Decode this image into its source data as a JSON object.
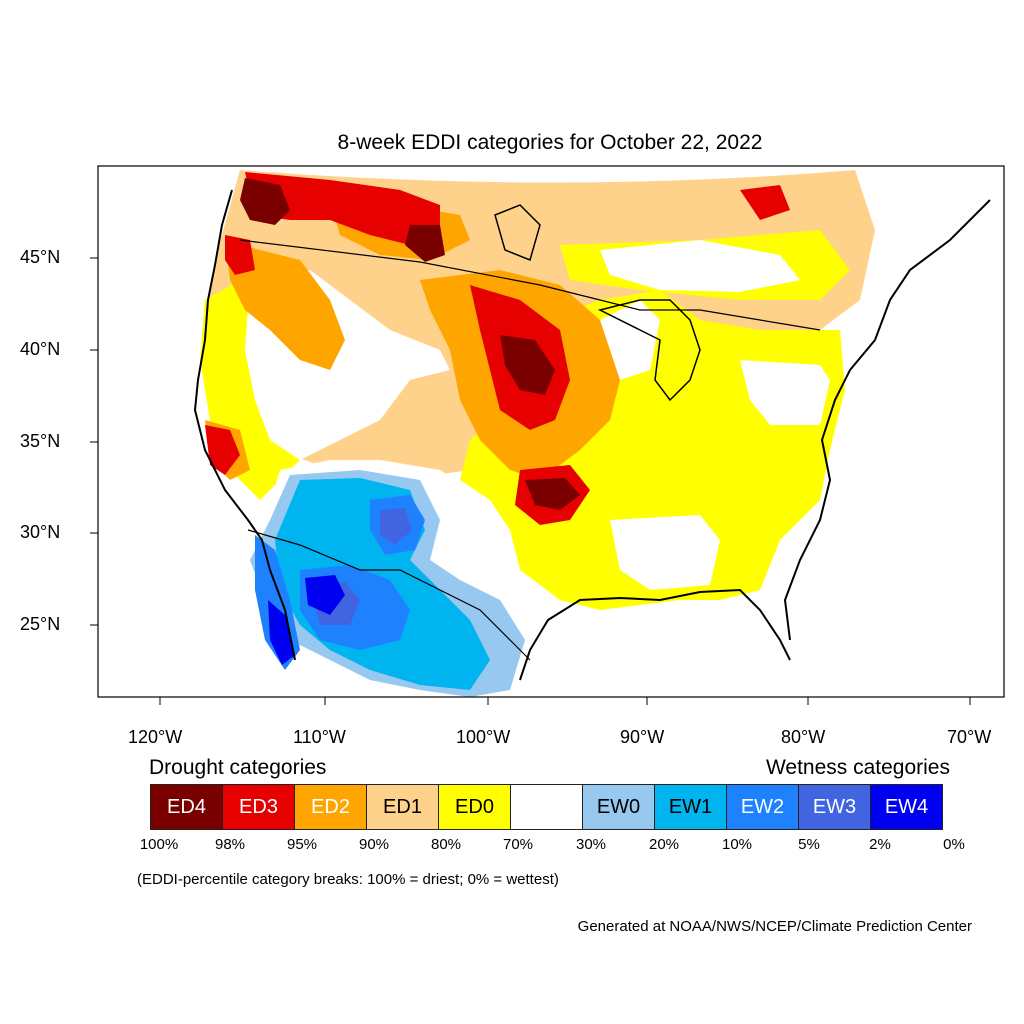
{
  "title": "8-week EDDI categories for October 22, 2022",
  "lat_labels": [
    "45°N",
    "40°N",
    "35°N",
    "30°N",
    "25°N"
  ],
  "lon_labels": [
    "120°W",
    "110°W",
    "100°W",
    "90°W",
    "80°W",
    "70°W"
  ],
  "legend": {
    "drought_heading": "Drought categories",
    "wetness_heading": "Wetness categories",
    "categories": [
      {
        "label": "ED4",
        "color": "#7a0000",
        "text_color": "#ffffff"
      },
      {
        "label": "ED3",
        "color": "#e60000",
        "text_color": "#ffffff"
      },
      {
        "label": "ED2",
        "color": "#ffa500",
        "text_color": "#ffffff"
      },
      {
        "label": "ED1",
        "color": "#ffd28c",
        "text_color": "#000000"
      },
      {
        "label": "ED0",
        "color": "#ffff00",
        "text_color": "#000000"
      },
      {
        "label": "",
        "color": "#ffffff",
        "text_color": "#000000"
      },
      {
        "label": "EW0",
        "color": "#96c8f0",
        "text_color": "#000000"
      },
      {
        "label": "EW1",
        "color": "#00b4f0",
        "text_color": "#000000"
      },
      {
        "label": "EW2",
        "color": "#1e82ff",
        "text_color": "#ffffff"
      },
      {
        "label": "EW3",
        "color": "#4164e1",
        "text_color": "#ffffff"
      },
      {
        "label": "EW4",
        "color": "#0000f0",
        "text_color": "#ffffff"
      }
    ],
    "breaks": [
      "100%",
      "98%",
      "95%",
      "90%",
      "80%",
      "70%",
      "30%",
      "20%",
      "10%",
      "5%",
      "2%",
      "0%"
    ]
  },
  "note": "(EDDI-percentile category breaks: 100% = driest; 0% = wettest)",
  "credit": "Generated at NOAA/NWS/NCEP/Climate Prediction Center"
}
